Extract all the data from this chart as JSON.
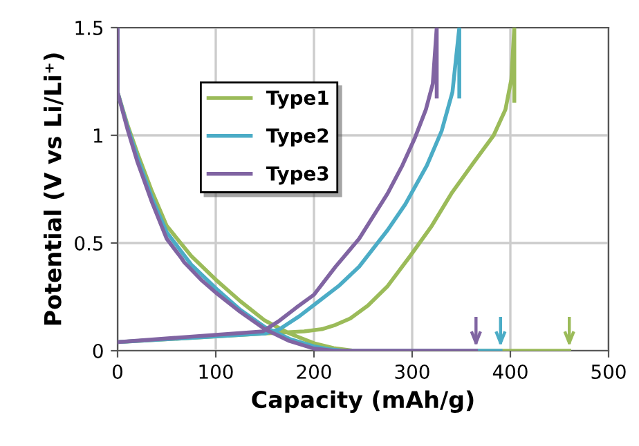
{
  "chart_data": {
    "type": "line",
    "xlabel": "Capacity (mAh/g)",
    "ylabel": "Potential (V vs Li/Li⁺)",
    "xlim": [
      0,
      500
    ],
    "ylim": [
      0,
      1.5
    ],
    "xticks": [
      0,
      100,
      200,
      300,
      400,
      500
    ],
    "yticks": [
      0,
      0.5,
      1,
      1.5
    ],
    "grid": true,
    "legend": "top left",
    "marker": "none",
    "line_style": "solid",
    "series": [
      {
        "name": "Type1",
        "color": "#9bbb59",
        "x": [
          0,
          0,
          10,
          20,
          35,
          50,
          75,
          100,
          125,
          150,
          175,
          200,
          220,
          240,
          460,
          null,
          0,
          150,
          190,
          208,
          222,
          237,
          255,
          275,
          298,
          320,
          340,
          362,
          383,
          395,
          401,
          404,
          404
        ],
        "values": [
          1.5,
          1.2,
          1.05,
          0.92,
          0.74,
          0.58,
          0.44,
          0.33,
          0.23,
          0.14,
          0.08,
          0.035,
          0.012,
          0,
          0,
          null,
          0.04,
          0.08,
          0.09,
          0.1,
          0.12,
          0.15,
          0.21,
          0.3,
          0.44,
          0.58,
          0.73,
          0.87,
          1.0,
          1.12,
          1.26,
          1.5,
          1.16
        ]
      },
      {
        "name": "Type2",
        "color": "#4bacc6",
        "x": [
          0,
          0,
          10,
          20,
          35,
          50,
          75,
          100,
          125,
          150,
          175,
          200,
          215,
          230,
          390,
          null,
          0,
          150,
          165,
          185,
          205,
          225,
          246,
          275,
          293,
          315,
          330,
          341,
          348,
          348
        ],
        "values": [
          1.5,
          1.2,
          1.04,
          0.9,
          0.71,
          0.55,
          0.4,
          0.29,
          0.19,
          0.11,
          0.055,
          0.02,
          0.007,
          0,
          0,
          null,
          0.04,
          0.08,
          0.1,
          0.16,
          0.23,
          0.3,
          0.39,
          0.56,
          0.68,
          0.86,
          1.02,
          1.2,
          1.5,
          1.18
        ]
      },
      {
        "name": "Type3",
        "color": "#8064a2",
        "x": [
          0,
          0,
          10,
          20,
          35,
          50,
          65,
          68,
          85,
          100,
          125,
          150,
          175,
          200,
          220,
          365,
          null,
          0,
          148,
          165,
          182,
          200,
          222,
          246,
          275,
          290,
          303,
          314,
          321,
          325,
          325
        ],
        "values": [
          1.5,
          1.2,
          1.03,
          0.88,
          0.69,
          0.52,
          0.43,
          0.41,
          0.33,
          0.27,
          0.18,
          0.1,
          0.045,
          0.01,
          0,
          0,
          null,
          0.04,
          0.09,
          0.14,
          0.2,
          0.26,
          0.39,
          0.52,
          0.73,
          0.86,
          0.99,
          1.12,
          1.24,
          1.5,
          1.18
        ]
      }
    ]
  }
}
